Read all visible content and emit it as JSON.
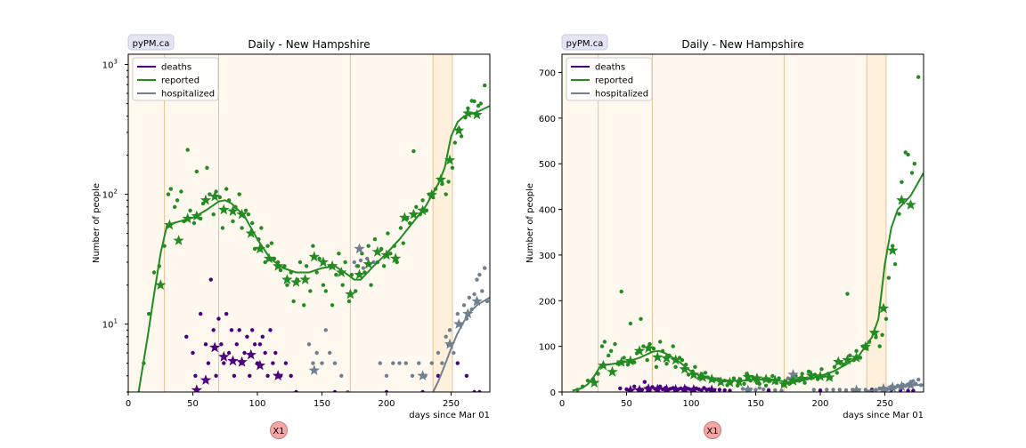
{
  "panels": [
    {
      "brand": "pyPM.ca",
      "title": "Daily - New Hampshire",
      "xlabel": "days since Mar 01",
      "ylabel": "Number of people",
      "scale": "log",
      "xlim": [
        0,
        280
      ],
      "ylim": [
        3,
        1200
      ],
      "xticks": [
        0,
        50,
        100,
        150,
        200,
        250
      ],
      "yticks": [
        {
          "v": 10,
          "label": "10",
          "sup": "1"
        },
        {
          "v": 100,
          "label": "10",
          "sup": "2"
        },
        {
          "v": 1000,
          "label": "10",
          "sup": "3"
        }
      ],
      "marker_label": "X1"
    },
    {
      "brand": "pyPM.ca",
      "title": "Daily - New Hampshire",
      "xlabel": "days since Mar 01",
      "ylabel": "Number of people",
      "scale": "linear",
      "xlim": [
        0,
        280
      ],
      "ylim": [
        0,
        740
      ],
      "xticks": [
        0,
        50,
        100,
        150,
        200,
        250
      ],
      "yticks": [
        {
          "v": 0,
          "label": "0"
        },
        {
          "v": 100,
          "label": "100"
        },
        {
          "v": 200,
          "label": "200"
        },
        {
          "v": 300,
          "label": "300"
        },
        {
          "v": 400,
          "label": "400"
        },
        {
          "v": 500,
          "label": "500"
        },
        {
          "v": 600,
          "label": "600"
        },
        {
          "v": 700,
          "label": "700"
        }
      ],
      "marker_label": "X1"
    }
  ],
  "legend": [
    {
      "name": "deaths",
      "color": "#4b0082"
    },
    {
      "name": "reported",
      "color": "#228b22"
    },
    {
      "name": "hospitalized",
      "color": "#708090"
    }
  ],
  "colors": {
    "deaths": "#4b0082",
    "reported": "#228b22",
    "hospitalized": "#708090",
    "band_light": "#fff8ee",
    "band_dark": "#fff0dc",
    "band_line": "#e6c29a"
  },
  "chart_data": {
    "type": "line",
    "x_unit": "days since Mar 01",
    "periods": [
      {
        "start": 0,
        "end": 28
      },
      {
        "start": 28,
        "end": 70
      },
      {
        "start": 70,
        "end": 172
      },
      {
        "start": 172,
        "end": 236
      },
      {
        "start": 236,
        "end": 251
      },
      {
        "start": 251,
        "end": 280
      }
    ],
    "series": [
      {
        "name": "reported",
        "model": {
          "x": [
            8,
            15,
            20,
            25,
            30,
            35,
            40,
            50,
            60,
            70,
            75,
            80,
            90,
            100,
            110,
            120,
            130,
            140,
            150,
            160,
            170,
            175,
            180,
            190,
            200,
            210,
            220,
            230,
            240,
            245,
            250,
            255,
            260,
            270,
            280
          ],
          "y": [
            3,
            8,
            17,
            35,
            58,
            60,
            62,
            66,
            75,
            88,
            90,
            85,
            68,
            45,
            32,
            27,
            25,
            25,
            27,
            28,
            24,
            22,
            22,
            28,
            35,
            45,
            60,
            80,
            120,
            160,
            280,
            360,
            400,
            430,
            480
          ]
        },
        "markers": {
          "x": [
            25,
            32,
            39,
            46,
            53,
            60,
            67,
            74,
            81,
            88,
            95,
            102,
            109,
            116,
            123,
            130,
            137,
            144,
            151,
            158,
            165,
            172,
            179,
            186,
            193,
            200,
            207,
            214,
            221,
            228,
            235,
            242,
            249,
            256,
            263,
            270
          ],
          "y": [
            20,
            58,
            44,
            65,
            68,
            90,
            96,
            76,
            74,
            70,
            50,
            38,
            32,
            28,
            22,
            21,
            22,
            33,
            30,
            28,
            25,
            17,
            24,
            29,
            36,
            34,
            32,
            66,
            70,
            75,
            99,
            130,
            183,
            310,
            420,
            410
          ]
        },
        "daily": {
          "x": [
            12,
            16,
            20,
            24,
            28,
            31,
            33,
            36,
            38,
            41,
            43,
            46,
            48,
            51,
            53,
            56,
            58,
            61,
            63,
            66,
            68,
            71,
            73,
            76,
            78,
            81,
            83,
            86,
            88,
            91,
            93,
            96,
            98,
            101,
            103,
            106,
            108,
            111,
            113,
            116,
            118,
            121,
            123,
            126,
            128,
            131,
            133,
            136,
            138,
            141,
            143,
            146,
            148,
            151,
            153,
            156,
            158,
            161,
            163,
            166,
            168,
            171,
            173,
            176,
            178,
            181,
            183,
            186,
            188,
            191,
            193,
            196,
            198,
            201,
            203,
            206,
            208,
            211,
            213,
            216,
            218,
            221,
            223,
            226,
            228,
            231,
            233,
            236,
            238,
            241,
            243,
            246,
            248,
            251,
            253,
            256,
            258,
            261,
            263,
            266,
            268,
            271,
            273,
            276
          ],
          "y": [
            5,
            12,
            25,
            28,
            40,
            100,
            110,
            80,
            90,
            105,
            62,
            220,
            75,
            60,
            150,
            65,
            85,
            160,
            100,
            70,
            105,
            95,
            55,
            110,
            90,
            62,
            80,
            100,
            55,
            75,
            70,
            60,
            38,
            45,
            55,
            30,
            40,
            42,
            32,
            30,
            26,
            28,
            20,
            25,
            15,
            22,
            30,
            14,
            28,
            18,
            40,
            25,
            32,
            20,
            18,
            28,
            14,
            24,
            35,
            20,
            30,
            15,
            24,
            18,
            28,
            35,
            25,
            40,
            20,
            45,
            30,
            38,
            28,
            50,
            35,
            40,
            30,
            55,
            42,
            65,
            60,
            215,
            80,
            70,
            90,
            75,
            100,
            95,
            110,
            130,
            120,
            100,
            125,
            160,
            250,
            320,
            280,
            390,
            460,
            525,
            520,
            480,
            500,
            690
          ]
        }
      },
      {
        "name": "deaths",
        "markers": {
          "x": [
            53,
            60,
            67,
            74,
            81,
            88,
            95,
            102,
            116
          ],
          "y": [
            3.1,
            3.7,
            6.6,
            5.6,
            5.2,
            5.1,
            5.8,
            4.8,
            4.0
          ]
        },
        "daily": {
          "x": [
            45,
            50,
            52,
            56,
            60,
            62,
            64,
            66,
            68,
            70,
            72,
            74,
            76,
            78,
            80,
            82,
            84,
            86,
            88,
            90,
            92,
            94,
            96,
            98,
            100,
            102,
            104,
            106,
            108,
            110,
            112,
            114,
            118,
            122,
            126,
            130,
            160,
            200,
            228,
            240,
            248,
            255,
            262,
            268,
            272
          ],
          "y": [
            8,
            6,
            4,
            12,
            7,
            5,
            22,
            9,
            4,
            11,
            7,
            5,
            12,
            6,
            9,
            4,
            7,
            9,
            5,
            6,
            8,
            4,
            9,
            7,
            5,
            7,
            8,
            6,
            4,
            9,
            5,
            6,
            4,
            5,
            4,
            3,
            3,
            3,
            3,
            4,
            7,
            5,
            4,
            3,
            3
          ]
        }
      },
      {
        "name": "hospitalized",
        "model": {
          "x": [
            236,
            240,
            245,
            250,
            255,
            260,
            265,
            270,
            275,
            280
          ],
          "y": [
            3,
            3.6,
            4.8,
            6.5,
            8.5,
            10.5,
            12.5,
            14,
            15,
            16
          ]
        },
        "markers": {
          "x": [
            144,
            179,
            228,
            249,
            256,
            263,
            270
          ],
          "y": [
            4.4,
            38,
            4.0,
            7.0,
            10,
            12,
            15
          ]
        },
        "daily": {
          "x": [
            140,
            143,
            146,
            150,
            153,
            156,
            160,
            165,
            170,
            175,
            177,
            180,
            182,
            185,
            187,
            190,
            195,
            200,
            205,
            210,
            215,
            220,
            225,
            230,
            235,
            240,
            243,
            246,
            249,
            252,
            255,
            258,
            260,
            262,
            264,
            266,
            268,
            270,
            272,
            274,
            276,
            278
          ],
          "y": [
            7,
            5,
            6,
            5,
            9,
            6,
            5,
            4,
            3,
            30,
            28,
            31,
            27,
            32,
            29,
            30,
            5,
            4,
            5,
            5,
            5,
            4,
            5,
            4,
            5,
            6,
            5,
            8,
            9,
            6,
            12,
            10,
            14,
            11,
            16,
            13,
            17,
            22,
            24,
            18,
            27,
            15
          ]
        }
      }
    ]
  }
}
